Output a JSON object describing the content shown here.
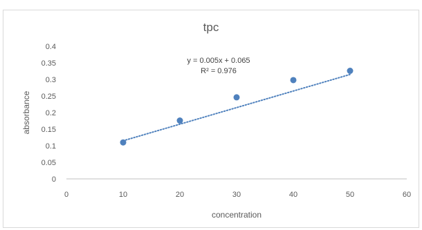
{
  "chart_data": {
    "type": "scatter",
    "title": "tpc",
    "xlabel": "concentration",
    "ylabel": "absorbance",
    "xlim": [
      0,
      60
    ],
    "ylim": [
      0,
      0.4
    ],
    "x_ticks": [
      0,
      10,
      20,
      30,
      40,
      50,
      60
    ],
    "y_ticks": [
      0,
      0.05,
      0.1,
      0.15,
      0.2,
      0.25,
      0.3,
      0.35,
      0.4
    ],
    "x_tick_labels": [
      "0",
      "10",
      "20",
      "30",
      "40",
      "50",
      "60"
    ],
    "y_tick_labels": [
      "0",
      "0.05",
      "0.1",
      "0.15",
      "0.2",
      "0.25",
      "0.3",
      "0.35",
      "0.4"
    ],
    "grid": false,
    "legend": "none",
    "series": [
      {
        "x": [
          10,
          20,
          30,
          40,
          50
        ],
        "y": [
          0.11,
          0.176,
          0.246,
          0.298,
          0.326
        ],
        "color": "#4f81bd"
      }
    ],
    "trendline": {
      "type": "linear",
      "slope": 0.005,
      "intercept": 0.065,
      "x_range": [
        10,
        50
      ],
      "style": "dotted",
      "color": "#4f81bd",
      "equation_label": "y = 0.005x + 0.065",
      "r2_label": "R² = 0.976"
    }
  }
}
